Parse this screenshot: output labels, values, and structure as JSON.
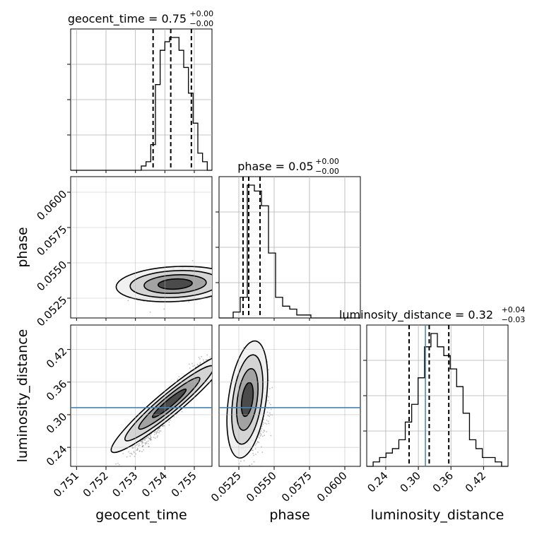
{
  "chart_data": {
    "type": "corner",
    "parameters": [
      {
        "key": "geocent_time",
        "label": "geocent_time",
        "range": [
          0.7508,
          0.7556
        ],
        "ticks": [
          "0.751",
          "0.752",
          "0.753",
          "0.754",
          "0.755"
        ],
        "tick_values": [
          0.751,
          0.752,
          0.753,
          0.754,
          0.755
        ],
        "title": {
          "main": "geocent_time = 0.75",
          "upper": "+0.00",
          "lower": "−0.00"
        },
        "quantiles": [
          0.7536,
          0.7542,
          0.7549
        ],
        "truth": null,
        "hist_edges": [
          0.7508,
          0.7556
        ],
        "hist_counts": [
          0,
          0,
          0,
          0,
          0,
          0,
          0,
          0,
          0,
          0,
          0,
          0,
          0,
          0,
          0,
          1,
          2,
          6,
          20,
          28,
          30,
          31,
          31,
          28,
          24,
          18,
          11,
          4,
          2,
          0
        ]
      },
      {
        "key": "phase",
        "label": "phase",
        "range": [
          0.0511,
          0.0611
        ],
        "ticks": [
          "0.0525",
          "0.0550",
          "0.0575",
          "0.0600"
        ],
        "tick_values": [
          0.0525,
          0.055,
          0.0575,
          0.06
        ],
        "title": {
          "main": "phase = 0.05",
          "upper": "+0.00",
          "lower": "−0.00"
        },
        "quantiles": [
          0.0528,
          0.0532,
          0.054
        ],
        "truth": null,
        "hist_edges": [
          0.0511,
          0.0611
        ],
        "hist_counts": [
          0,
          0,
          2,
          7,
          45,
          43,
          38,
          22,
          7,
          4,
          3,
          1,
          1,
          0,
          0,
          0,
          0,
          0,
          0,
          0
        ]
      },
      {
        "key": "luminosity_distance",
        "label": "luminosity_distance",
        "range": [
          0.205,
          0.465
        ],
        "ticks": [
          "0.24",
          "0.30",
          "0.36",
          "0.42"
        ],
        "tick_values": [
          0.24,
          0.3,
          0.36,
          0.42
        ],
        "title": {
          "main": "luminosity_distance = 0.32",
          "upper": "+0.04",
          "lower": "−0.03"
        },
        "quantiles": [
          0.283,
          0.32,
          0.356
        ],
        "truth": 0.313,
        "hist_edges": [
          0.205,
          0.465
        ],
        "hist_counts": [
          0,
          1,
          2,
          3,
          4,
          6,
          10,
          14,
          20,
          27,
          30,
          27,
          25,
          22,
          18,
          12,
          6,
          4,
          2,
          2,
          1,
          0
        ]
      }
    ],
    "pairs": [
      {
        "x": "geocent_time",
        "y": "phase",
        "truth_y": null
      },
      {
        "x": "geocent_time",
        "y": "luminosity_distance",
        "truth_y": 0.313
      },
      {
        "x": "phase",
        "y": "luminosity_distance",
        "truth_y": 0.313
      }
    ],
    "colors": {
      "line": "#000000",
      "truth": "#4682b4",
      "grid": "#b0b0b0",
      "scatter": "#444444"
    }
  }
}
